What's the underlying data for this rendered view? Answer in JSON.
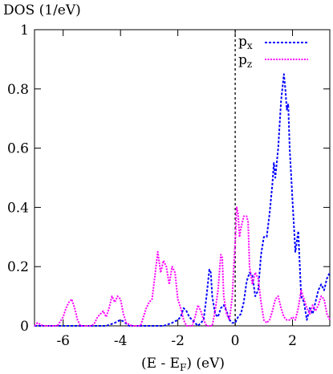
{
  "chart_data": {
    "type": "line",
    "ylabel": "DOS (1/eV)",
    "xlabel_parts": {
      "main": "(E - E",
      "sub": "F",
      "tail": ") (eV)"
    },
    "xlim": [
      -7,
      3.3
    ],
    "ylim": [
      0,
      1
    ],
    "xticks": [
      -6,
      -4,
      -2,
      0,
      2
    ],
    "yticks": [
      0,
      0.2,
      0.4,
      0.6,
      0.8,
      1
    ],
    "xtick_labels": [
      "-6",
      "-4",
      "-2",
      "0",
      "2"
    ],
    "ytick_labels": [
      "0",
      "0.2",
      "0.4",
      "0.6",
      "0.8",
      "1"
    ],
    "fermi_line_x": 0,
    "grid": false,
    "legend_position": "top-right",
    "series": [
      {
        "name": "p_x",
        "legend_main": "p",
        "legend_sub": "x",
        "color": "#0000ff",
        "points": [
          [
            -7.0,
            0.0
          ],
          [
            -4.5,
            0.0
          ],
          [
            -4.2,
            0.01
          ],
          [
            -4.0,
            0.02
          ],
          [
            -3.9,
            0.015
          ],
          [
            -3.7,
            0.0
          ],
          [
            -2.5,
            0.0
          ],
          [
            -2.2,
            0.01
          ],
          [
            -2.0,
            0.02
          ],
          [
            -1.9,
            0.03
          ],
          [
            -1.8,
            0.06
          ],
          [
            -1.7,
            0.05
          ],
          [
            -1.6,
            0.03
          ],
          [
            -1.5,
            0.02
          ],
          [
            -1.3,
            0.0
          ],
          [
            -1.1,
            0.02
          ],
          [
            -1.0,
            0.1
          ],
          [
            -0.9,
            0.19
          ],
          [
            -0.85,
            0.18
          ],
          [
            -0.8,
            0.1
          ],
          [
            -0.7,
            0.04
          ],
          [
            -0.6,
            0.03
          ],
          [
            -0.5,
            0.06
          ],
          [
            -0.4,
            0.07
          ],
          [
            -0.3,
            0.05
          ],
          [
            -0.2,
            0.02
          ],
          [
            -0.1,
            0.01
          ],
          [
            0.0,
            0.01
          ],
          [
            0.1,
            0.03
          ],
          [
            0.2,
            0.04
          ],
          [
            0.3,
            0.08
          ],
          [
            0.4,
            0.15
          ],
          [
            0.5,
            0.18
          ],
          [
            0.6,
            0.17
          ],
          [
            0.7,
            0.1
          ],
          [
            0.8,
            0.12
          ],
          [
            0.9,
            0.24
          ],
          [
            1.0,
            0.3
          ],
          [
            1.1,
            0.3
          ],
          [
            1.2,
            0.38
          ],
          [
            1.3,
            0.48
          ],
          [
            1.35,
            0.55
          ],
          [
            1.4,
            0.5
          ],
          [
            1.5,
            0.6
          ],
          [
            1.6,
            0.76
          ],
          [
            1.7,
            0.85
          ],
          [
            1.75,
            0.8
          ],
          [
            1.8,
            0.73
          ],
          [
            1.85,
            0.75
          ],
          [
            1.9,
            0.6
          ],
          [
            2.0,
            0.42
          ],
          [
            2.1,
            0.25
          ],
          [
            2.2,
            0.32
          ],
          [
            2.3,
            0.1
          ],
          [
            2.4,
            0.08
          ],
          [
            2.5,
            0.02
          ],
          [
            2.6,
            0.06
          ],
          [
            2.7,
            0.04
          ],
          [
            2.8,
            0.08
          ],
          [
            2.9,
            0.12
          ],
          [
            3.0,
            0.14
          ],
          [
            3.1,
            0.12
          ],
          [
            3.2,
            0.16
          ],
          [
            3.3,
            0.18
          ]
        ]
      },
      {
        "name": "p_z",
        "legend_main": "p",
        "legend_sub": "z",
        "color": "#ff00ff",
        "points": [
          [
            -7.0,
            0.0
          ],
          [
            -6.9,
            0.01
          ],
          [
            -6.7,
            0.0
          ],
          [
            -6.2,
            0.0
          ],
          [
            -6.0,
            0.03
          ],
          [
            -5.9,
            0.06
          ],
          [
            -5.8,
            0.08
          ],
          [
            -5.7,
            0.09
          ],
          [
            -5.6,
            0.06
          ],
          [
            -5.5,
            0.02
          ],
          [
            -5.4,
            0.0
          ],
          [
            -5.0,
            0.0
          ],
          [
            -4.9,
            0.01
          ],
          [
            -4.8,
            0.03
          ],
          [
            -4.6,
            0.05
          ],
          [
            -4.5,
            0.03
          ],
          [
            -4.4,
            0.06
          ],
          [
            -4.3,
            0.1
          ],
          [
            -4.2,
            0.08
          ],
          [
            -4.1,
            0.1
          ],
          [
            -4.0,
            0.09
          ],
          [
            -3.9,
            0.04
          ],
          [
            -3.8,
            0.01
          ],
          [
            -3.6,
            0.0
          ],
          [
            -3.3,
            0.0
          ],
          [
            -3.2,
            0.03
          ],
          [
            -3.1,
            0.06
          ],
          [
            -3.0,
            0.08
          ],
          [
            -2.9,
            0.09
          ],
          [
            -2.8,
            0.17
          ],
          [
            -2.7,
            0.25
          ],
          [
            -2.6,
            0.18
          ],
          [
            -2.5,
            0.22
          ],
          [
            -2.4,
            0.2
          ],
          [
            -2.3,
            0.14
          ],
          [
            -2.2,
            0.2
          ],
          [
            -2.1,
            0.18
          ],
          [
            -2.0,
            0.09
          ],
          [
            -1.9,
            0.06
          ],
          [
            -1.8,
            0.02
          ],
          [
            -1.7,
            0.0
          ],
          [
            -1.5,
            0.0
          ],
          [
            -1.4,
            0.03
          ],
          [
            -1.3,
            0.07
          ],
          [
            -1.2,
            0.05
          ],
          [
            -1.1,
            0.02
          ],
          [
            -1.0,
            0.0
          ],
          [
            -0.8,
            0.0
          ],
          [
            -0.7,
            0.05
          ],
          [
            -0.6,
            0.12
          ],
          [
            -0.5,
            0.24
          ],
          [
            -0.45,
            0.23
          ],
          [
            -0.4,
            0.1
          ],
          [
            -0.3,
            0.04
          ],
          [
            -0.2,
            0.02
          ],
          [
            -0.1,
            0.1
          ],
          [
            -0.05,
            0.2
          ],
          [
            0.0,
            0.28
          ],
          [
            0.05,
            0.4
          ],
          [
            0.1,
            0.38
          ],
          [
            0.15,
            0.3
          ],
          [
            0.2,
            0.33
          ],
          [
            0.3,
            0.37
          ],
          [
            0.4,
            0.37
          ],
          [
            0.45,
            0.35
          ],
          [
            0.5,
            0.2
          ],
          [
            0.6,
            0.14
          ],
          [
            0.7,
            0.18
          ],
          [
            0.8,
            0.16
          ],
          [
            0.9,
            0.08
          ],
          [
            1.0,
            0.02
          ],
          [
            1.1,
            0.01
          ],
          [
            1.2,
            0.02
          ],
          [
            1.3,
            0.05
          ],
          [
            1.4,
            0.09
          ],
          [
            1.5,
            0.1
          ],
          [
            1.6,
            0.06
          ],
          [
            1.7,
            0.03
          ],
          [
            1.8,
            0.02
          ],
          [
            1.9,
            0.02
          ],
          [
            2.0,
            0.03
          ],
          [
            2.1,
            0.02
          ],
          [
            2.2,
            0.06
          ],
          [
            2.3,
            0.12
          ],
          [
            2.4,
            0.09
          ],
          [
            2.5,
            0.06
          ],
          [
            2.6,
            0.04
          ],
          [
            2.7,
            0.07
          ],
          [
            2.8,
            0.05
          ],
          [
            2.9,
            0.07
          ],
          [
            3.0,
            0.1
          ],
          [
            3.1,
            0.09
          ],
          [
            3.2,
            0.04
          ],
          [
            3.3,
            0.02
          ]
        ]
      }
    ]
  }
}
